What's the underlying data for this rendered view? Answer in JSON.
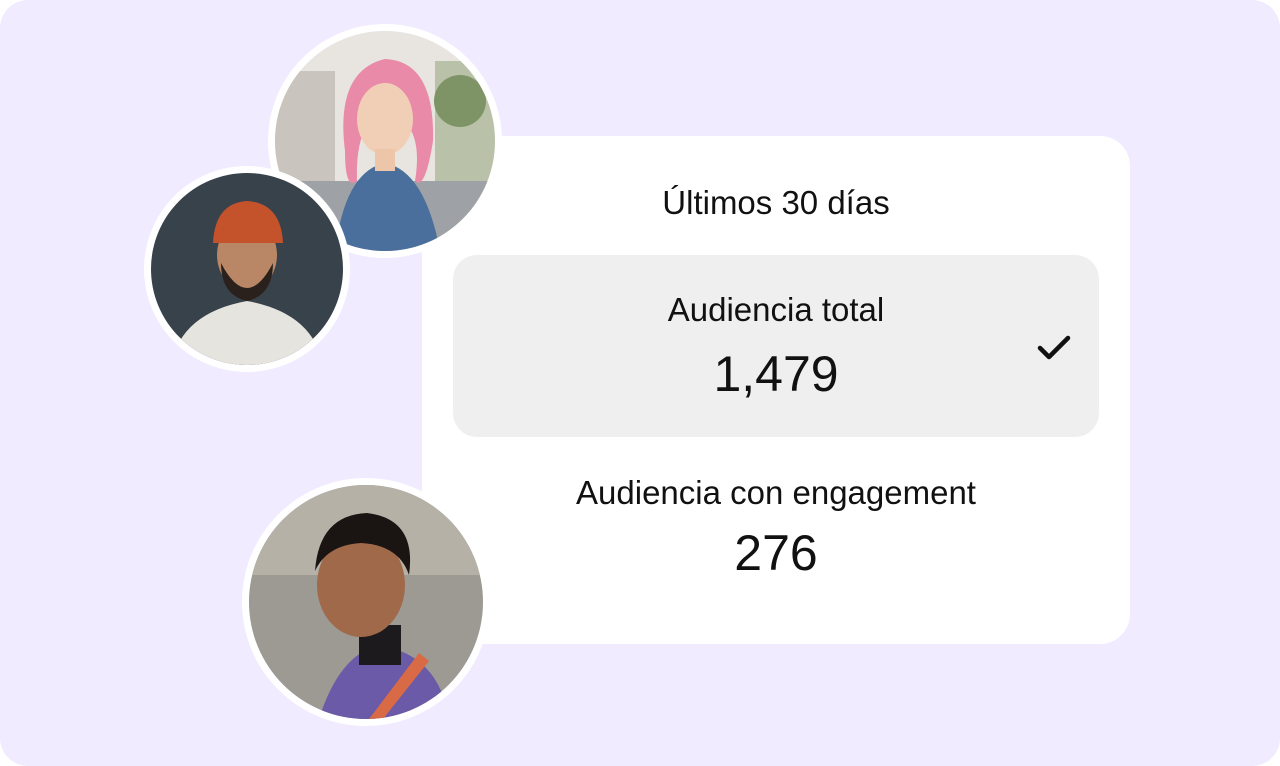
{
  "panel": {
    "title": "Últimos 30 días",
    "options": [
      {
        "label": "Audiencia total",
        "value": "1,479",
        "selected": true
      },
      {
        "label": "Audiencia con engagement",
        "value": "276",
        "selected": false
      }
    ]
  },
  "icons": {
    "check": "checkmark-icon"
  },
  "colors": {
    "background": "#f1ebff",
    "card": "#ffffff",
    "selected_option": "#efefef",
    "text": "#111111"
  }
}
